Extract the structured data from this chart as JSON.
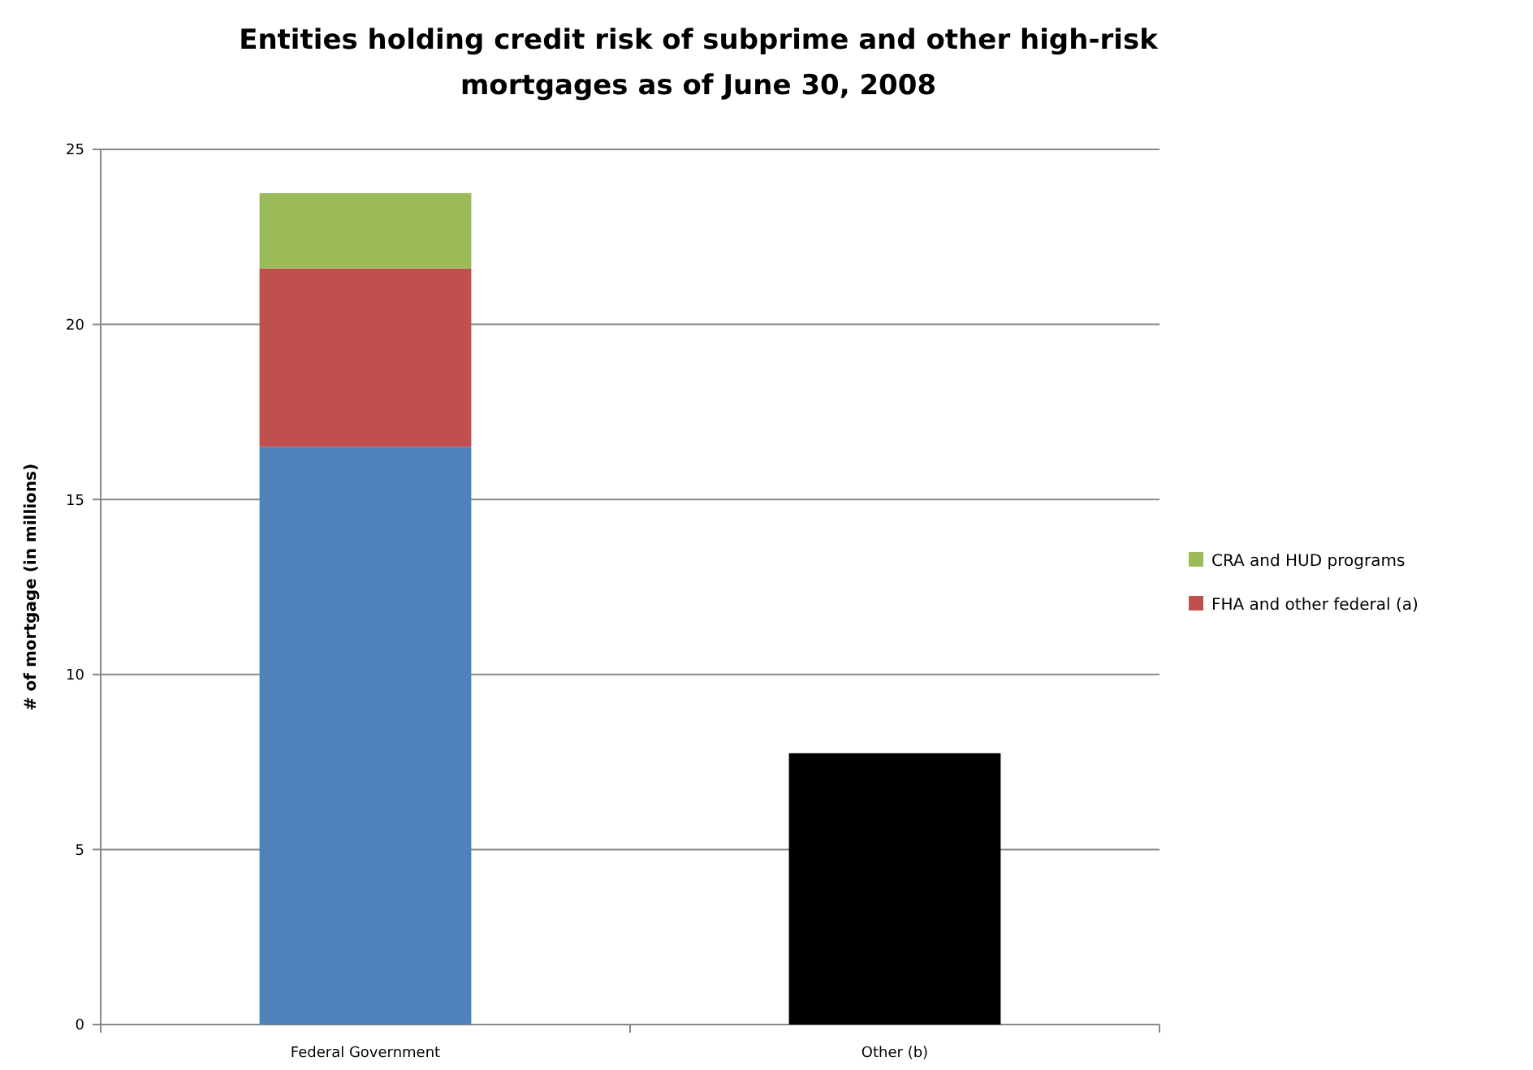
{
  "chart_data": {
    "type": "bar",
    "title": "Entities holding credit risk of subprime and other high-risk mortgages as of June 30, 2008",
    "ylabel": "# of mortgage  (in millions)",
    "categories": [
      "Federal Government",
      "Other (b)"
    ],
    "stacked": true,
    "series": [
      {
        "color": "#4f81bd",
        "values": [
          16.5,
          null
        ]
      },
      {
        "name": "FHA and other federal (a)",
        "color": "#c0504d",
        "values": [
          5.1,
          null
        ]
      },
      {
        "name": "CRA and HUD programs",
        "color": "#9bbb59",
        "values": [
          2.15,
          null
        ]
      },
      {
        "color": "#000000",
        "values": [
          null,
          7.75
        ]
      }
    ],
    "ylim": [
      0,
      25
    ],
    "yticks": [
      0,
      5,
      10,
      15,
      20,
      25
    ],
    "grid": "y",
    "legend": "right"
  }
}
